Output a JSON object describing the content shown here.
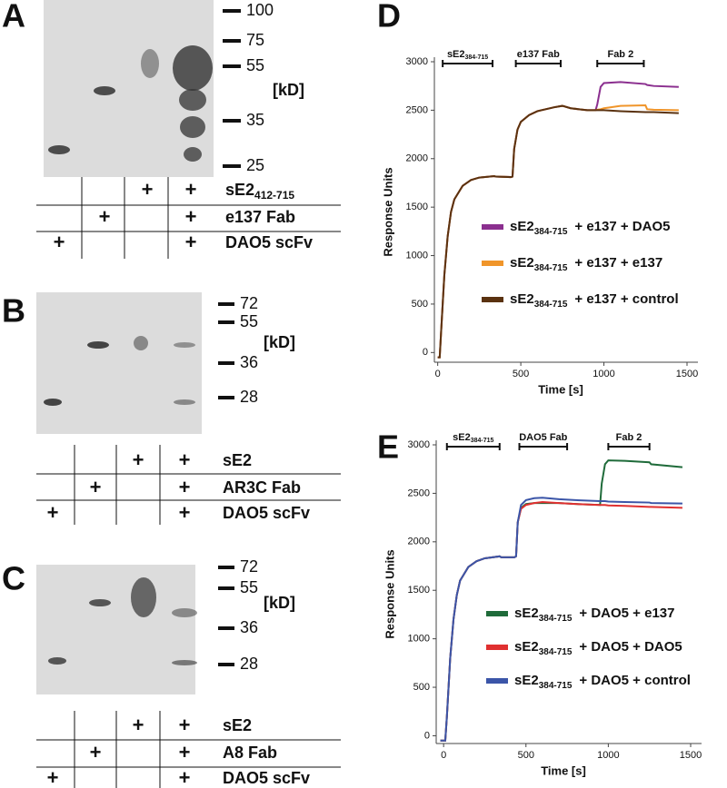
{
  "gels": [
    {
      "panel": "A",
      "markers": [
        100,
        75,
        55,
        35,
        25
      ],
      "unit": "[kD]",
      "table": [
        {
          "label": "sE2",
          "label_sub": "412-715",
          "cells": [
            null,
            null,
            "+",
            "+"
          ]
        },
        {
          "label": "e137 Fab",
          "cells": [
            null,
            "+",
            null,
            "+"
          ]
        },
        {
          "label": "DAO5 scFv",
          "cells": [
            "+",
            null,
            null,
            "+"
          ]
        }
      ]
    },
    {
      "panel": "B",
      "markers": [
        72,
        55,
        36,
        28
      ],
      "unit": "[kD]",
      "table": [
        {
          "label": "sE2",
          "cells": [
            null,
            null,
            "+",
            "+"
          ]
        },
        {
          "label": "AR3C Fab",
          "cells": [
            null,
            "+",
            null,
            "+"
          ]
        },
        {
          "label": "DAO5 scFv",
          "cells": [
            "+",
            null,
            null,
            "+"
          ]
        }
      ]
    },
    {
      "panel": "C",
      "markers": [
        72,
        55,
        36,
        28
      ],
      "unit": "[kD]",
      "table": [
        {
          "label": "sE2",
          "cells": [
            null,
            null,
            "+",
            "+"
          ]
        },
        {
          "label": "A8 Fab",
          "cells": [
            null,
            "+",
            null,
            "+"
          ]
        },
        {
          "label": "DAO5 scFv",
          "cells": [
            "+",
            null,
            null,
            "+"
          ]
        }
      ]
    }
  ],
  "chart_data": [
    {
      "type": "line",
      "panel": "D",
      "xlabel": "Time [s]",
      "ylabel": "Response Units",
      "xlim": [
        -20,
        1500
      ],
      "ylim": [
        -100,
        3000
      ],
      "xticks": [
        0,
        500,
        1000,
        1500
      ],
      "yticks": [
        0,
        500,
        1000,
        1500,
        2000,
        2500,
        3000
      ],
      "annotations": [
        {
          "text": "sE2",
          "sub": "384-715",
          "x": [
            30,
            330
          ]
        },
        {
          "text": "e137 Fab",
          "x": [
            470,
            740
          ]
        },
        {
          "text": "Fab 2",
          "x": [
            960,
            1240
          ]
        }
      ],
      "x": [
        0,
        12,
        20,
        30,
        40,
        60,
        80,
        100,
        150,
        200,
        250,
        340,
        350,
        440,
        450,
        460,
        480,
        500,
        550,
        600,
        700,
        750,
        800,
        900,
        950,
        960,
        980,
        1000,
        1100,
        1250,
        1260,
        1300,
        1450
      ],
      "series": [
        {
          "name_prefix": "sE2",
          "name_sub": "384-715",
          "name": "+ e137 + DAO5",
          "color": "#8b2f8f",
          "values": [
            -50,
            -50,
            200,
            500,
            800,
            1200,
            1450,
            1580,
            1720,
            1780,
            1805,
            1820,
            1815,
            1810,
            1815,
            2100,
            2300,
            2380,
            2450,
            2490,
            2530,
            2545,
            2520,
            2500,
            2500,
            2560,
            2740,
            2780,
            2790,
            2770,
            2760,
            2750,
            2740
          ]
        },
        {
          "name_prefix": "sE2",
          "name_sub": "384-715",
          "name": "+ e137 + e137",
          "color": "#f0952a",
          "values": [
            -50,
            -50,
            200,
            500,
            800,
            1200,
            1450,
            1580,
            1720,
            1780,
            1805,
            1820,
            1815,
            1810,
            1815,
            2100,
            2300,
            2380,
            2450,
            2490,
            2530,
            2545,
            2520,
            2500,
            2500,
            2505,
            2510,
            2520,
            2545,
            2550,
            2510,
            2505,
            2500
          ]
        },
        {
          "name_prefix": "sE2",
          "name_sub": "384-715",
          "name": "+ e137 + control",
          "color": "#5a3210",
          "values": [
            -50,
            -50,
            200,
            500,
            800,
            1200,
            1450,
            1580,
            1720,
            1780,
            1805,
            1820,
            1815,
            1810,
            1815,
            2100,
            2300,
            2380,
            2450,
            2490,
            2530,
            2545,
            2520,
            2500,
            2500,
            2500,
            2500,
            2500,
            2490,
            2480,
            2480,
            2480,
            2470
          ]
        }
      ]
    },
    {
      "type": "line",
      "panel": "E",
      "xlabel": "Time [s]",
      "ylabel": "Response Units",
      "xlim": [
        -45,
        1500
      ],
      "ylim": [
        -80,
        3000
      ],
      "xticks": [
        0,
        500,
        1000,
        1500
      ],
      "yticks": [
        0,
        500,
        1000,
        1500,
        2000,
        2500,
        3000
      ],
      "annotations": [
        {
          "text": "sE2",
          "sub": "384-715",
          "x": [
            20,
            340
          ]
        },
        {
          "text": "DAO5 Fab",
          "x": [
            460,
            750
          ]
        },
        {
          "text": "Fab 2",
          "x": [
            1000,
            1250
          ]
        }
      ],
      "x": [
        -20,
        10,
        20,
        30,
        40,
        60,
        80,
        100,
        150,
        200,
        250,
        340,
        350,
        430,
        440,
        450,
        470,
        500,
        550,
        600,
        700,
        800,
        950,
        960,
        980,
        1000,
        1100,
        1250,
        1260,
        1450
      ],
      "series": [
        {
          "name_prefix": "sE2",
          "name_sub": "384-715",
          "name": "+ DAO5 + e137",
          "color": "#1f6b3a",
          "values": [
            -50,
            -50,
            200,
            500,
            800,
            1200,
            1450,
            1600,
            1740,
            1800,
            1830,
            1850,
            1840,
            1840,
            1850,
            2200,
            2350,
            2390,
            2400,
            2400,
            2400,
            2390,
            2380,
            2600,
            2800,
            2840,
            2835,
            2820,
            2800,
            2770
          ]
        },
        {
          "name_prefix": "sE2",
          "name_sub": "384-715",
          "name": "+ DAO5 + DAO5",
          "color": "#e03030",
          "values": [
            -50,
            -50,
            200,
            500,
            800,
            1200,
            1450,
            1600,
            1740,
            1800,
            1830,
            1850,
            1840,
            1840,
            1850,
            2200,
            2340,
            2380,
            2400,
            2410,
            2400,
            2390,
            2380,
            2380,
            2380,
            2375,
            2370,
            2360,
            2360,
            2350
          ]
        },
        {
          "name_prefix": "sE2",
          "name_sub": "384-715",
          "name": "+ DAO5 + control",
          "color": "#3b55a8",
          "values": [
            -50,
            -50,
            200,
            500,
            800,
            1200,
            1450,
            1600,
            1740,
            1800,
            1830,
            1850,
            1840,
            1840,
            1850,
            2200,
            2380,
            2430,
            2450,
            2455,
            2440,
            2430,
            2420,
            2420,
            2420,
            2415,
            2410,
            2405,
            2400,
            2395
          ]
        }
      ]
    }
  ]
}
